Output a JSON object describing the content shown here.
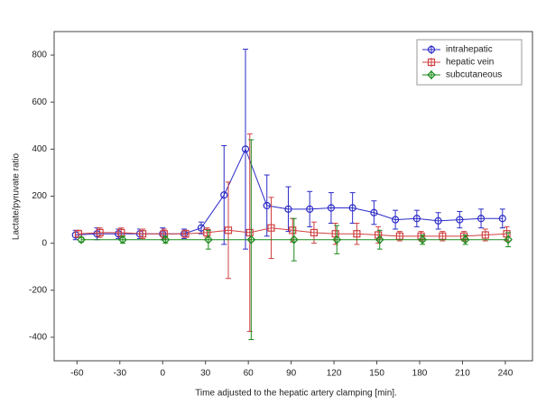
{
  "chart_data": {
    "type": "line",
    "xlabel": "Time adjusted to the hepatic artery clamping [min].",
    "ylabel": "Lactate/pyruvate ratio",
    "xlim": [
      -76,
      259
    ],
    "xticks": [
      -60,
      -30,
      0,
      30,
      60,
      90,
      120,
      150,
      180,
      210,
      240
    ],
    "ylim": [
      -500,
      900
    ],
    "yticks": [
      -400,
      -200,
      0,
      200,
      400,
      600,
      800
    ],
    "legend": "upper right",
    "series": [
      {
        "name": "intrahepatic",
        "color": "#2b2bc8",
        "marker": "circle",
        "x": [
          -61,
          -46,
          -31,
          -16,
          0,
          15,
          27,
          43,
          58,
          73,
          88,
          103,
          118,
          133,
          148,
          163,
          178,
          193,
          208,
          223,
          238
        ],
        "values": [
          35,
          40,
          40,
          40,
          40,
          40,
          65,
          205,
          400,
          160,
          145,
          145,
          150,
          150,
          130,
          100,
          105,
          95,
          100,
          105,
          105
        ],
        "errors": [
          20,
          25,
          20,
          20,
          25,
          20,
          25,
          210,
          425,
          130,
          95,
          75,
          65,
          65,
          50,
          40,
          35,
          35,
          35,
          40,
          40
        ]
      },
      {
        "name": "hepatic vein",
        "color": "#d04040",
        "marker": "square",
        "x": [
          -59,
          -44,
          -29,
          -14,
          1,
          16,
          31,
          46,
          61,
          76,
          91,
          106,
          121,
          136,
          151,
          166,
          181,
          196,
          211,
          226,
          241
        ],
        "values": [
          40,
          45,
          45,
          40,
          40,
          40,
          45,
          55,
          45,
          65,
          55,
          45,
          40,
          40,
          35,
          30,
          30,
          30,
          30,
          35,
          40
        ],
        "errors": [
          15,
          20,
          20,
          20,
          20,
          15,
          20,
          205,
          420,
          130,
          50,
          45,
          45,
          45,
          35,
          20,
          20,
          20,
          20,
          25,
          30
        ]
      },
      {
        "name": "subcutaneous",
        "color": "#1a8a1a",
        "marker": "diamond",
        "x": [
          -57,
          -28,
          2,
          32,
          62,
          92,
          122,
          152,
          182,
          212,
          242
        ],
        "values": [
          15,
          15,
          15,
          15,
          15,
          15,
          15,
          15,
          15,
          15,
          15
        ],
        "errors": [
          10,
          15,
          15,
          40,
          425,
          90,
          60,
          40,
          20,
          20,
          30
        ]
      }
    ]
  }
}
